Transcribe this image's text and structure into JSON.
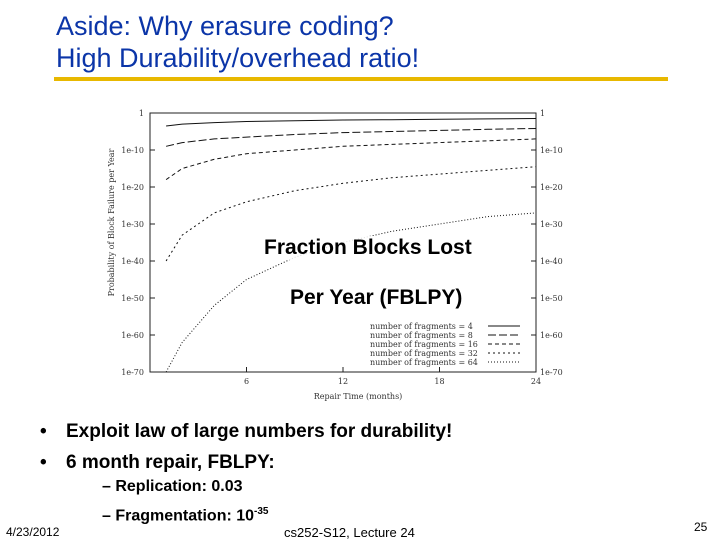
{
  "slide": {
    "title_line1": "Aside: Why erasure coding?",
    "title_line2": "High Durability/overhead ratio!",
    "overlay_line1": "Fraction Blocks Lost",
    "overlay_line2": "Per Year (FBLPY)",
    "bullets": [
      "Exploit law of large numbers for durability!",
      "6 month repair, FBLPY:"
    ],
    "sub_bullet1": "– Replication: 0.03",
    "sub_bullet2_prefix": "– Fragmentation: 10",
    "sub_bullet2_exp": "-35",
    "footer_date": "4/23/2012",
    "footer_course": "cs252-S12, Lecture 24",
    "footer_page": "25",
    "accent_color": "#e8b800",
    "title_color": "#0b35a8"
  },
  "chart_data": {
    "type": "line",
    "xlabel": "Repair Time (months)",
    "ylabel": "Probability of Block Failure per Year",
    "x_ticks": [
      "6",
      "12",
      "18",
      "24"
    ],
    "y_ticks": [
      "1",
      "1e-10",
      "1e-20",
      "1e-30",
      "1e-40",
      "1e-50",
      "1e-60",
      "1e-70"
    ],
    "xlim": [
      0,
      24
    ],
    "ylim_log10": [
      -70,
      0
    ],
    "legend_position": "bottom-right",
    "series": [
      {
        "name": "number of fragments = 4",
        "x": [
          1,
          2,
          4,
          6,
          9,
          12,
          15,
          18,
          21,
          24
        ],
        "log10_y": [
          -3.5,
          -3,
          -2.6,
          -2.3,
          -2.1,
          -1.9,
          -1.8,
          -1.7,
          -1.6,
          -1.5
        ]
      },
      {
        "name": "number of fragments = 8",
        "x": [
          1,
          2,
          4,
          6,
          9,
          12,
          15,
          18,
          21,
          24
        ],
        "log10_y": [
          -9,
          -8,
          -7,
          -6.5,
          -5.8,
          -5.3,
          -5,
          -4.7,
          -4.4,
          -4.2
        ]
      },
      {
        "name": "number of fragments = 16",
        "x": [
          1,
          2,
          4,
          6,
          9,
          12,
          15,
          18,
          21,
          24
        ],
        "log10_y": [
          -18,
          -15,
          -12.5,
          -11,
          -10,
          -9,
          -8.5,
          -8,
          -7.5,
          -7
        ]
      },
      {
        "name": "number of fragments = 32",
        "x": [
          1,
          2,
          4,
          6,
          9,
          12,
          15,
          18,
          21,
          24
        ],
        "log10_y": [
          -40,
          -33,
          -27,
          -24,
          -21,
          -19,
          -17.5,
          -16.5,
          -15.5,
          -14.5
        ]
      },
      {
        "name": "number of fragments = 64",
        "x": [
          1,
          2,
          4,
          6,
          9,
          12,
          15,
          18,
          21,
          24
        ],
        "log10_y": [
          -70,
          -62,
          -52,
          -45,
          -39,
          -35,
          -32,
          -30,
          -28,
          -27
        ]
      }
    ]
  }
}
